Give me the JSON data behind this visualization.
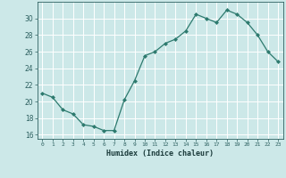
{
  "x": [
    0,
    1,
    2,
    3,
    4,
    5,
    6,
    7,
    8,
    9,
    10,
    11,
    12,
    13,
    14,
    15,
    16,
    17,
    18,
    19,
    20,
    21,
    22,
    23
  ],
  "y": [
    21.0,
    20.5,
    19.0,
    18.5,
    17.2,
    17.0,
    16.5,
    16.5,
    20.2,
    22.5,
    25.5,
    26.0,
    27.0,
    27.5,
    28.5,
    30.5,
    30.0,
    29.5,
    31.0,
    30.5,
    29.5,
    28.0,
    26.0,
    24.8
  ],
  "xlabel": "Humidex (Indice chaleur)",
  "ylim": [
    15.5,
    32
  ],
  "yticks": [
    16,
    18,
    20,
    22,
    24,
    26,
    28,
    30
  ],
  "xticks": [
    0,
    1,
    2,
    3,
    4,
    5,
    6,
    7,
    8,
    9,
    10,
    11,
    12,
    13,
    14,
    15,
    16,
    17,
    18,
    19,
    20,
    21,
    22,
    23
  ],
  "line_color": "#2d7a6e",
  "marker": "D",
  "marker_size": 2.0,
  "bg_color": "#cce8e8",
  "grid_color": "#ffffff",
  "tick_color": "#2d6060",
  "xlabel_color": "#1a3a3a"
}
